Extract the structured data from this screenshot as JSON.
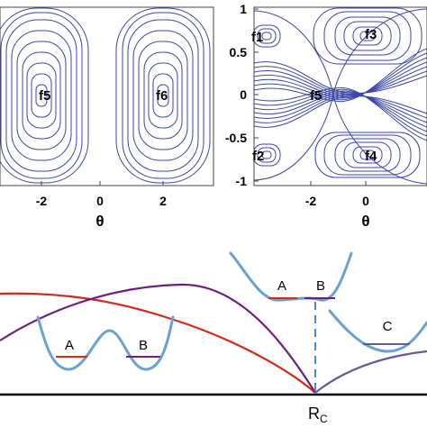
{
  "chart_data": [
    {
      "type": "line",
      "subtype": "streamplot",
      "xlabel": "θ",
      "ylabel": "",
      "xlim": [
        -3.14,
        3.14
      ],
      "ylim": [
        -1,
        1
      ],
      "xticks": [
        "-2",
        "0",
        "2"
      ],
      "yticks": [],
      "grid": false,
      "line_color": "#3c46a8",
      "fixed_points": [
        {
          "label": "f5",
          "x": -1.57,
          "y": 0
        },
        {
          "label": "f6",
          "x": 1.57,
          "y": 0
        }
      ]
    },
    {
      "type": "line",
      "subtype": "streamplot",
      "xlabel": "θ",
      "ylabel": "",
      "xlim": [
        -3.14,
        3.14
      ],
      "ylim": [
        -1,
        1
      ],
      "xticks": [
        "-2",
        "0"
      ],
      "yticks": [
        "1",
        "0.5",
        "0",
        "-0.5",
        "-1"
      ],
      "grid": false,
      "line_color": "#3c46a8",
      "fixed_points": [
        {
          "label": "f1",
          "x": -2.9,
          "y": 0.7
        },
        {
          "label": "f2",
          "x": -2.9,
          "y": -0.7
        },
        {
          "label": "f3",
          "x": 0.1,
          "y": 0.7
        },
        {
          "label": "f4",
          "x": 0.1,
          "y": -0.7
        },
        {
          "label": "f5",
          "x": -0.5,
          "y": 0
        }
      ]
    },
    {
      "type": "line",
      "subtype": "schematic",
      "xlabel": "",
      "ylabel": "",
      "critical_label_main": "R",
      "critical_label_sub": "C",
      "colors": {
        "red": "#d42a1c",
        "purple": "#6b1f7a",
        "slate": "#5f5a98",
        "well": "#6aa2cc",
        "dash": "#4a8dc4"
      },
      "series": [
        {
          "name": "",
          "color": "red",
          "x": [
            0,
            0.2,
            0.4,
            0.6,
            0.8,
            1.0
          ],
          "y": [
            0.72,
            0.74,
            0.58,
            0.28,
            0.08,
            0.0
          ]
        },
        {
          "name": "",
          "color": "purple",
          "x": [
            0,
            0.2,
            0.4,
            0.6,
            0.8,
            1.0
          ],
          "y": [
            0.38,
            0.66,
            0.78,
            0.66,
            0.3,
            0.0
          ]
        },
        {
          "name": "",
          "color": "slate",
          "x": [
            1.0,
            1.15,
            1.3
          ],
          "y": [
            0.0,
            0.2,
            0.3
          ]
        }
      ],
      "wells": [
        {
          "id": "double-well-left",
          "labels": [
            "A",
            "B"
          ]
        },
        {
          "id": "double-well-top",
          "labels": [
            "A",
            "B"
          ]
        },
        {
          "id": "single-well",
          "labels": [
            "C"
          ]
        }
      ]
    }
  ]
}
